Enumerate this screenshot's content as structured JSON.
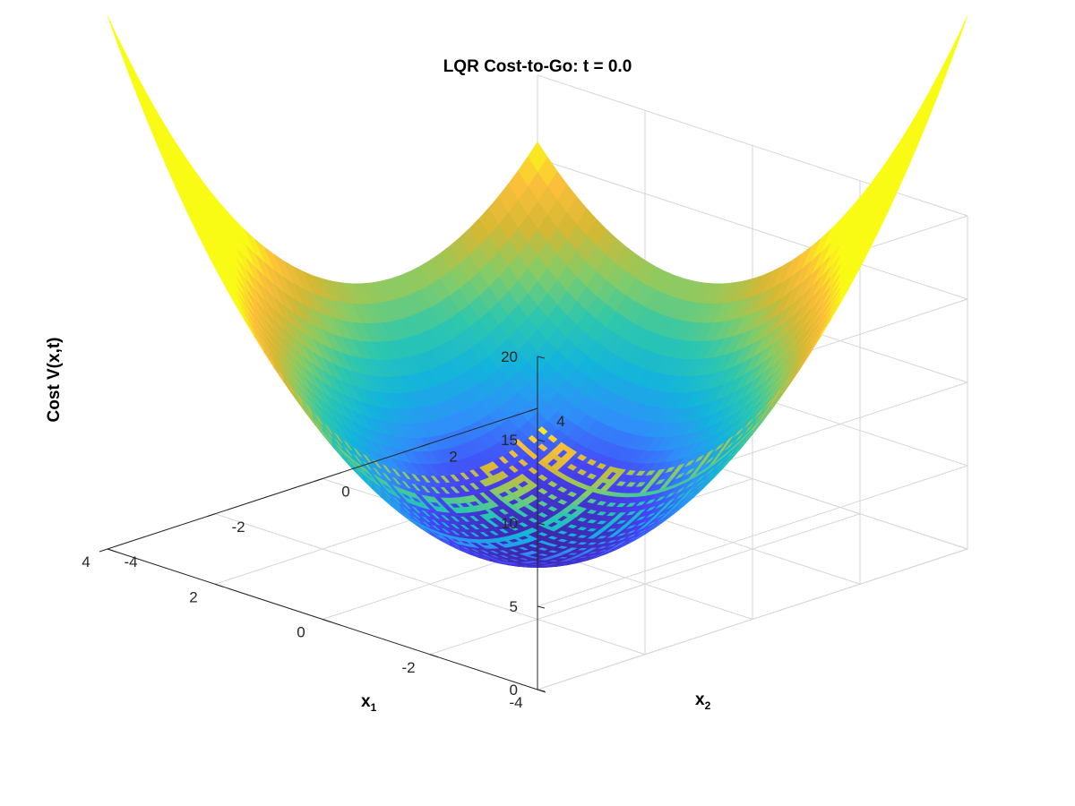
{
  "chart_data": {
    "type": "surface",
    "title": "LQR Cost-to-Go: t = 0.0",
    "xlabel": "x",
    "xlabel_sub": "1",
    "ylabel": "x",
    "ylabel_sub": "2",
    "zlabel": "Cost V(x,t)",
    "xlim": [
      -4,
      4
    ],
    "ylim": [
      -4,
      4
    ],
    "zlim": [
      0,
      20
    ],
    "x_ticks": [
      -4,
      -2,
      0,
      2,
      4
    ],
    "y_ticks": [
      -4,
      -2,
      0,
      2,
      4
    ],
    "z_ticks": [
      0,
      5,
      10,
      15,
      20
    ],
    "x_tick_labels": [
      "-4",
      "-2",
      "0",
      "2",
      "4"
    ],
    "y_tick_labels": [
      "-4",
      "-2",
      "0",
      "2",
      "4"
    ],
    "z_tick_labels": [
      "0",
      "5",
      "10",
      "15",
      "20"
    ],
    "surface_function": "V(x1,x2) = 0.75*(x1^2 + x2^2) - 0.5*x1*x2",
    "corner_values": {
      "x1=-4,x2=-4": 16,
      "x1=4,x2=4": 16,
      "x1=-4,x2=4": 32,
      "x1=4,x2=-4": 32
    },
    "colormap": "parula",
    "colormap_colors": [
      "#3e26a8",
      "#4743f8",
      "#2f8ff9",
      "#13b4dc",
      "#2ec7ad",
      "#85cc66",
      "#d4b834",
      "#fcbf3a",
      "#f9fb15"
    ],
    "grid": true,
    "view": {
      "azimuth": -45,
      "elevation": 25
    }
  }
}
